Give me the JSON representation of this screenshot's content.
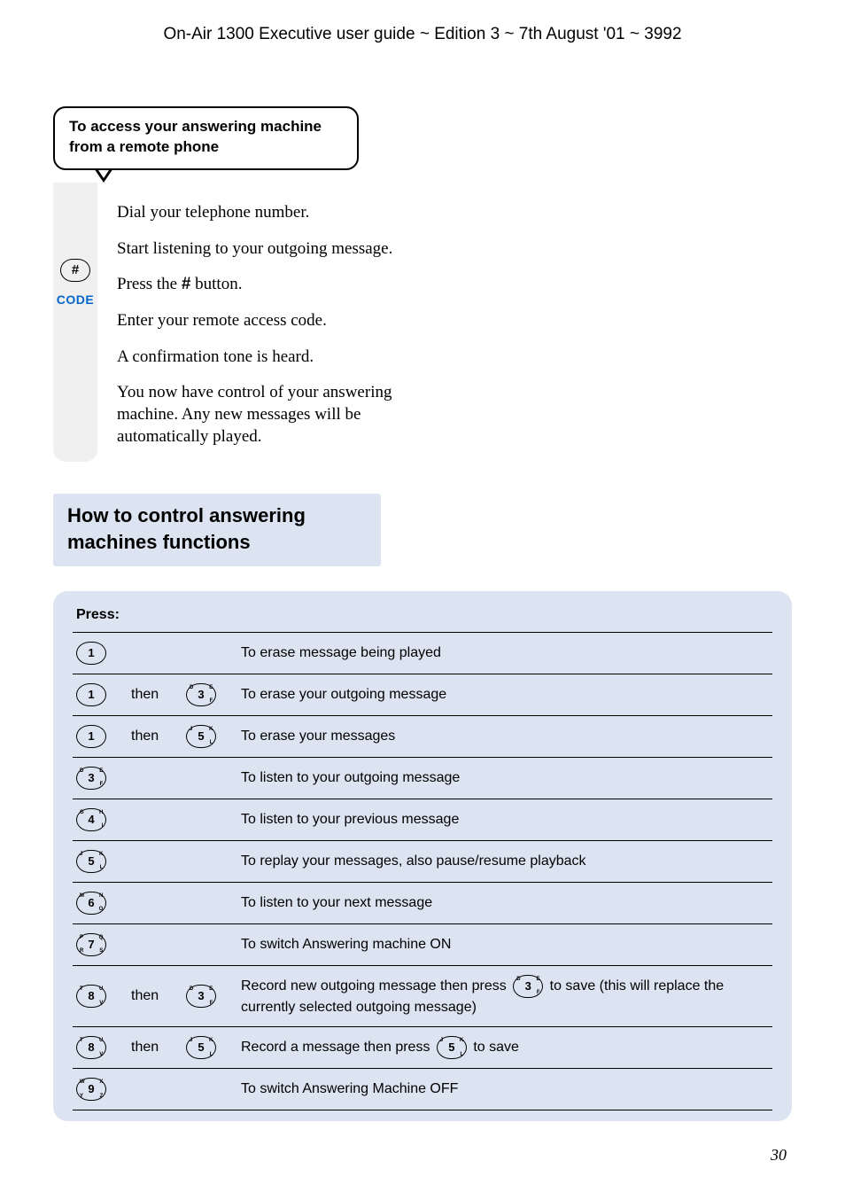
{
  "header": "On-Air 1300 Executive user guide ~ Edition 3 ~ 7th August '01 ~ 3992",
  "callout_title": "To access your answering machine from a remote phone",
  "rail": {
    "hash": "#",
    "code": "CODE"
  },
  "steps": [
    "Dial your telephone number.",
    "Start listening to your outgoing message.",
    "Press the # button.",
    "Enter your remote access code.",
    "A confirmation tone is heard.",
    "You now have control of your answering machine. Any new messages will be automatically played."
  ],
  "section_title": "How to control answering machines functions",
  "table": {
    "header": "Press:",
    "rows": [
      {
        "k1": {
          "d": "1"
        },
        "then": "",
        "k2": null,
        "desc_parts": [
          {
            "t": "To erase message being played"
          }
        ]
      },
      {
        "k1": {
          "d": "1"
        },
        "then": "then",
        "k2": {
          "d": "3",
          "tl": "D",
          "tr": "E",
          "br": "F"
        },
        "desc_parts": [
          {
            "t": "To erase your outgoing message"
          }
        ]
      },
      {
        "k1": {
          "d": "1"
        },
        "then": "then",
        "k2": {
          "d": "5",
          "tl": "J",
          "tr": "K",
          "br": "L"
        },
        "desc_parts": [
          {
            "t": "To erase your messages"
          }
        ]
      },
      {
        "k1": {
          "d": "3",
          "tl": "D",
          "tr": "E",
          "br": "F"
        },
        "then": "",
        "k2": null,
        "desc_parts": [
          {
            "t": "To listen to your outgoing message"
          }
        ]
      },
      {
        "k1": {
          "d": "4",
          "tl": "G",
          "tr": "H",
          "br": "I"
        },
        "then": "",
        "k2": null,
        "desc_parts": [
          {
            "t": "To listen to your previous message"
          }
        ]
      },
      {
        "k1": {
          "d": "5",
          "tl": "J",
          "tr": "K",
          "br": "L"
        },
        "then": "",
        "k2": null,
        "desc_parts": [
          {
            "t": "To replay your messages, also pause/resume playback"
          }
        ]
      },
      {
        "k1": {
          "d": "6",
          "tl": "M",
          "tr": "N",
          "br": "O"
        },
        "then": "",
        "k2": null,
        "desc_parts": [
          {
            "t": "To listen to your next message"
          }
        ]
      },
      {
        "k1": {
          "d": "7",
          "tl": "P",
          "tr": "Q",
          "br": "S",
          "bl": "R"
        },
        "then": "",
        "k2": null,
        "desc_parts": [
          {
            "t": "To switch Answering machine ON"
          }
        ]
      },
      {
        "k1": {
          "d": "8",
          "tl": "T",
          "tr": "U",
          "br": "V"
        },
        "then": "then",
        "k2": {
          "d": "3",
          "tl": "D",
          "tr": "E",
          "br": "F"
        },
        "desc_parts": [
          {
            "t": "Record new outgoing message then press "
          },
          {
            "key": {
              "d": "3",
              "tl": "D",
              "tr": "E",
              "br": "F"
            }
          },
          {
            "t": " to save (this will replace the currently selected outgoing message)"
          }
        ]
      },
      {
        "k1": {
          "d": "8",
          "tl": "T",
          "tr": "U",
          "br": "V"
        },
        "then": "then",
        "k2": {
          "d": "5",
          "tl": "J",
          "tr": "K",
          "br": "L"
        },
        "desc_parts": [
          {
            "t": "Record a message then press "
          },
          {
            "key": {
              "d": "5",
              "tl": "J",
              "tr": "K",
              "br": "L"
            }
          },
          {
            "t": " to save"
          }
        ]
      },
      {
        "k1": {
          "d": "9",
          "tl": "W",
          "tr": "X",
          "br": "Z",
          "bl": "Y"
        },
        "then": "",
        "k2": null,
        "desc_parts": [
          {
            "t": "To switch Answering Machine OFF"
          }
        ]
      }
    ]
  },
  "page_number": "30",
  "colors": {
    "band_bg": "#dce4f2",
    "rail_bg": "#f0f0f0",
    "code_color": "#0066cc"
  }
}
